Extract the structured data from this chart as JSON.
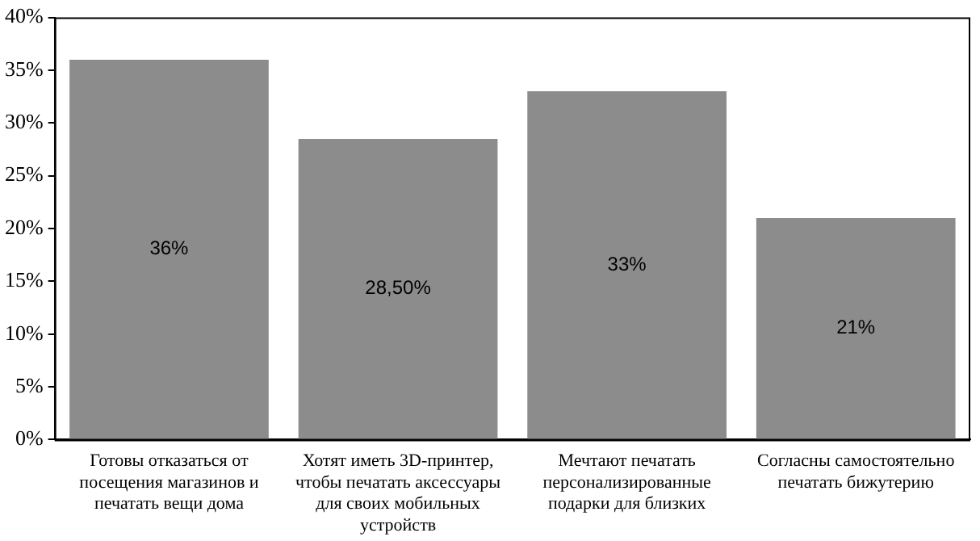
{
  "chart_data": {
    "type": "bar",
    "categories": [
      "Готовы отказаться от посещения магазинов и печатать вещи дома",
      "Хотят иметь 3D-принтер, чтобы печатать аксессуары для своих мобильных устройств",
      "Мечтают печатать персонализированные подарки для близких",
      "Согласны самостоятельно печатать бижутерию"
    ],
    "values": [
      36,
      28.5,
      33,
      21
    ],
    "value_labels": [
      "36%",
      "28,50%",
      "33%",
      "21%"
    ],
    "color": "#8c8c8c",
    "ylim": [
      0,
      40
    ],
    "yticks": [
      {
        "value": 0,
        "label": "0%"
      },
      {
        "value": 5,
        "label": "5%"
      },
      {
        "value": 10,
        "label": "10%"
      },
      {
        "value": 15,
        "label": "15%"
      },
      {
        "value": 20,
        "label": "20%"
      },
      {
        "value": 25,
        "label": "25%"
      },
      {
        "value": 30,
        "label": "30%"
      },
      {
        "value": 35,
        "label": "35%"
      },
      {
        "value": 40,
        "label": "40%"
      }
    ],
    "grid": false,
    "legend": false
  }
}
